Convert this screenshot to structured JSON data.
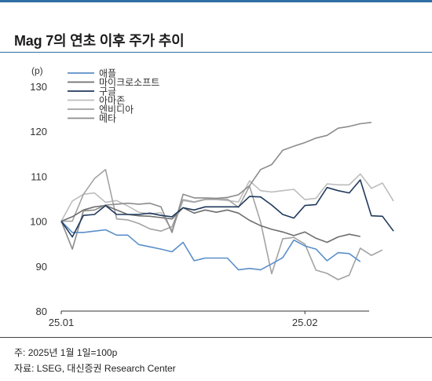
{
  "title": "Mag 7의 연초 이후 주가 추이",
  "footnote": "주: 2025년 1월 1일=100p",
  "source": "자료: LSEG, 대신증권 Research Center",
  "chart_data": {
    "type": "line",
    "ylabel": "(p)",
    "ylim": [
      80,
      130
    ],
    "yticks": [
      "80",
      "90",
      "100",
      "110",
      "120",
      "130"
    ],
    "xticks": [
      {
        "label": "25.01",
        "index": 0
      },
      {
        "label": "25.02",
        "index": 22
      }
    ],
    "grid": false,
    "legend": "top-left",
    "series": [
      {
        "name": "애플",
        "color": "#5b8fc9",
        "values": [
          100,
          97.5,
          97.5,
          97.8,
          98.1,
          96.9,
          96.9,
          94.8,
          94.3,
          93.8,
          93.2,
          95.3,
          91.2,
          91.8,
          91.8,
          91.8,
          89.2,
          89.5,
          89.2,
          90.5,
          91.9,
          95.8,
          94.5,
          93.8,
          91.2,
          93,
          92.8,
          91
        ]
      },
      {
        "name": "마이크로소프트",
        "color": "#6e6e6e",
        "values": [
          100,
          101,
          102.5,
          103.2,
          103.5,
          102.5,
          101.5,
          101.2,
          101.1,
          100.8,
          100.5,
          103,
          101.8,
          102.5,
          102,
          102.5,
          101.8,
          100.2,
          99,
          98.2,
          97.6,
          96.8,
          97.6,
          96.2,
          95.3,
          96.5,
          97.1,
          96.6
        ]
      },
      {
        "name": "구글",
        "color": "#1f3a5c",
        "values": [
          100,
          96.5,
          101.3,
          101.5,
          103.5,
          101.5,
          101.5,
          101.5,
          101.8,
          101.3,
          101,
          103,
          102.5,
          103.2,
          103.2,
          103.2,
          103.2,
          105.5,
          105.4,
          103.6,
          101.5,
          100.7,
          103.5,
          103.7,
          107.5,
          106.8,
          106.3,
          109.2,
          101.2,
          101.1,
          97.8
        ]
      },
      {
        "name": "아마존",
        "color": "#bdbdbd",
        "values": [
          100,
          104.5,
          106,
          106.3,
          104.2,
          104.6,
          103.4,
          102,
          101.6,
          101.9,
          98,
          104.6,
          104.2,
          104.8,
          104.8,
          104.6,
          104.3,
          109,
          106.8,
          106.5,
          106.8,
          107.1,
          104.8,
          105.1,
          108.3,
          108.1,
          108.1,
          110.5,
          107.3,
          108.5,
          104.5
        ]
      },
      {
        "name": "엔비디아",
        "color": "#a3a3a3",
        "values": [
          100,
          100,
          106,
          109.5,
          111.5,
          100.5,
          100.3,
          99.5,
          98.3,
          97.8,
          98.8,
          104.8,
          104.3,
          104.9,
          104.9,
          104.9,
          103.1,
          107.8,
          99.8,
          88.3,
          96.1,
          96.4,
          94.9,
          89.1,
          88.4,
          87,
          88,
          94,
          92.4,
          93.6
        ]
      },
      {
        "name": "메타",
        "color": "#8c8c8c",
        "values": [
          100,
          93.8,
          102.3,
          102.5,
          103.6,
          103.8,
          104,
          103.8,
          104,
          103.2,
          97.5,
          106,
          105.2,
          105.2,
          105.1,
          105.3,
          105.9,
          107.9,
          111.5,
          112.6,
          115.8,
          116.7,
          117.5,
          118.5,
          119.1,
          120.7,
          121.1,
          121.7,
          122
        ]
      }
    ]
  }
}
